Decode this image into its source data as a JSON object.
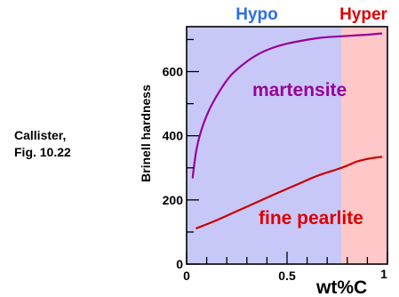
{
  "side_note": {
    "line1": "Callister,",
    "line2": "Fig. 10.22"
  },
  "chart_data": {
    "type": "line",
    "title": "",
    "xlabel": "wt%C",
    "ylabel": "Brinell hardness",
    "xlim": [
      0,
      1.0
    ],
    "ylim": [
      0,
      740
    ],
    "x_ticks": [
      {
        "value": 0,
        "label": "0"
      },
      {
        "value": 0.5,
        "label": "0.5"
      },
      {
        "value": 1.0,
        "label": "1"
      }
    ],
    "y_ticks": [
      {
        "value": 0,
        "label": "0"
      },
      {
        "value": 200,
        "label": "200"
      },
      {
        "value": 400,
        "label": "400"
      },
      {
        "value": 600,
        "label": "600"
      }
    ],
    "x_minor_step": 0.1,
    "y_minor_step": 100,
    "grid": false,
    "regions": [
      {
        "name": "Hypo",
        "x_start": 0,
        "x_end": 0.77,
        "color": "#c8c8f8",
        "label_color": "#2e6ee6"
      },
      {
        "name": "Hyper",
        "x_start": 0.77,
        "x_end": 1.0,
        "color": "#ffc8c8",
        "label_color": "#dd0000"
      }
    ],
    "series": [
      {
        "name": "martensite",
        "color": "#990099",
        "label_color": "#990099",
        "x": [
          0.03,
          0.05,
          0.08,
          0.12,
          0.17,
          0.22,
          0.28,
          0.35,
          0.42,
          0.5,
          0.58,
          0.66,
          0.74,
          0.82,
          0.9,
          0.97
        ],
        "y": [
          270,
          360,
          430,
          490,
          545,
          588,
          622,
          652,
          672,
          687,
          697,
          705,
          709,
          712,
          715,
          719
        ]
      },
      {
        "name": "fine pearlite",
        "color": "#cc0000",
        "label_color": "#dd0000",
        "x": [
          0.05,
          0.15,
          0.25,
          0.35,
          0.45,
          0.55,
          0.65,
          0.77,
          0.85,
          0.92,
          0.97
        ],
        "y": [
          112,
          137,
          165,
          193,
          221,
          248,
          275,
          300,
          320,
          330,
          334
        ]
      }
    ]
  }
}
